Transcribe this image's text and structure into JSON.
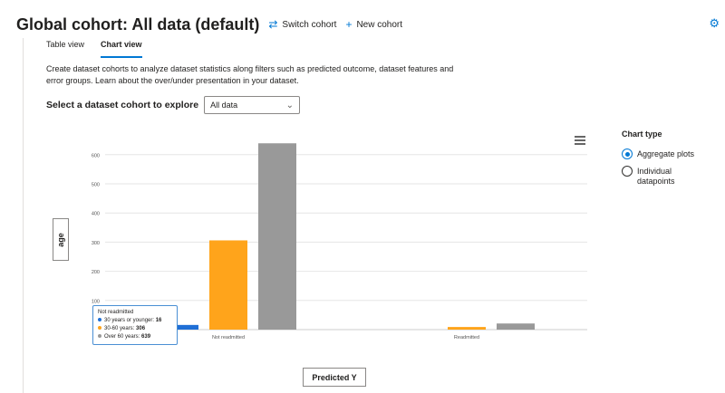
{
  "header": {
    "title": "Global cohort: All data (default)",
    "switch_cohort": "Switch cohort",
    "new_cohort": "New cohort",
    "switch_icon": "⇄",
    "new_icon": "+",
    "settings_icon": "⚙"
  },
  "tabs": [
    {
      "label": "Table view",
      "active": false
    },
    {
      "label": "Chart view",
      "active": true
    }
  ],
  "description": "Create dataset cohorts to analyze dataset statistics along filters such as predicted outcome, dataset features and error groups. Learn about the over/under presentation in your dataset.",
  "cohort_select": {
    "label": "Select a dataset cohort to explore",
    "value": "All data",
    "chevron": "⌄"
  },
  "y_axis_button": "age",
  "x_axis_button": "Predicted Y",
  "chart_type": {
    "title": "Chart type",
    "options": [
      {
        "label": "Aggregate plots",
        "checked": true
      },
      {
        "label": "Individual datapoints",
        "checked": false
      }
    ]
  },
  "tooltip": {
    "title": "Not readmitted",
    "rows": [
      {
        "label": "30 years or younger: ",
        "value": "16",
        "color": "#1f6fd6"
      },
      {
        "label": "30-60 years: ",
        "value": "306",
        "color": "#ffa41b"
      },
      {
        "label": "Over 60 years: ",
        "value": "639",
        "color": "#999999"
      }
    ]
  },
  "chart_data": {
    "type": "bar",
    "categories": [
      "Not readmitted",
      "Readmitted"
    ],
    "series": [
      {
        "name": "30 years or younger",
        "values": [
          16,
          0
        ],
        "color": "#1f6fd6"
      },
      {
        "name": "30-60 years",
        "values": [
          306,
          9
        ],
        "color": "#ffa41b"
      },
      {
        "name": "Over 60 years",
        "values": [
          639,
          21
        ],
        "color": "#999999"
      }
    ],
    "ylim": [
      0,
      650
    ],
    "yticks": [
      100,
      200,
      300,
      400,
      500,
      600
    ],
    "grid": true,
    "legend": "none"
  }
}
